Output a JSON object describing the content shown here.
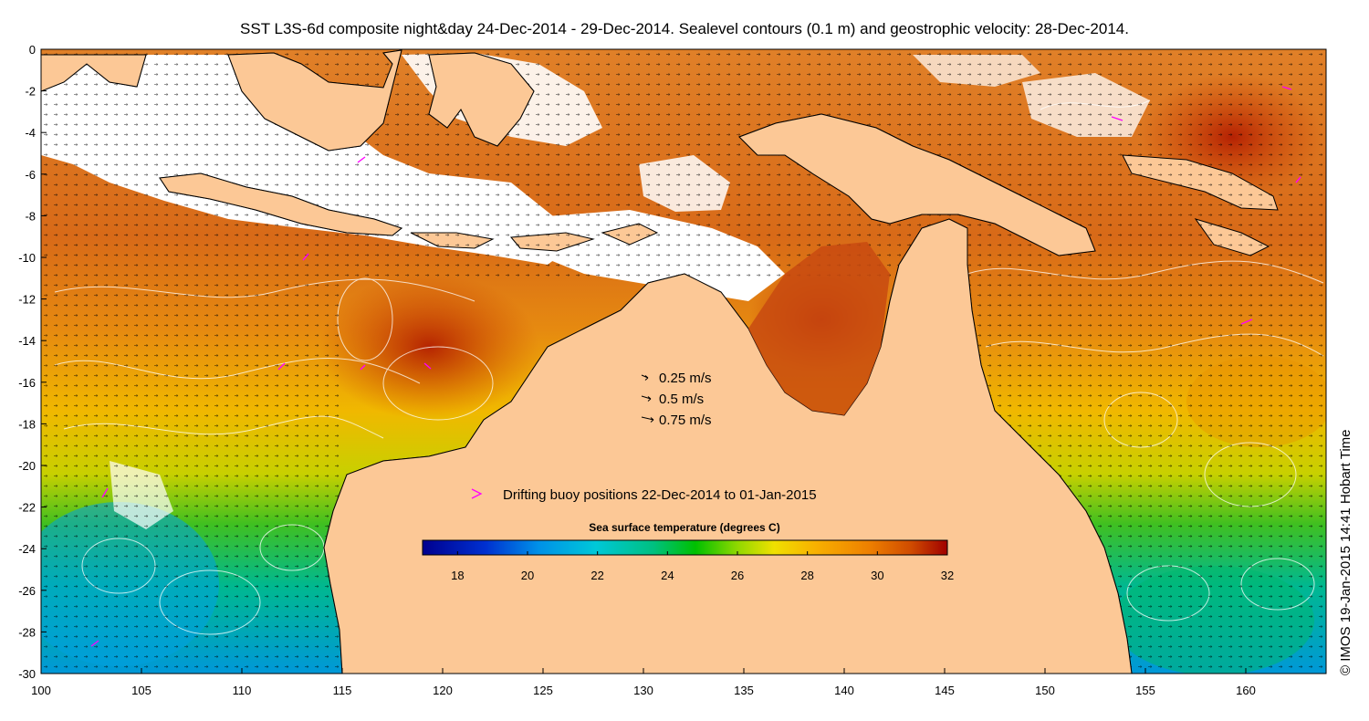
{
  "title": "SST L3S-6d composite night&day 24-Dec-2014 - 29-Dec-2014. Sealevel contours (0.1 m) and geostrophic velocity: 28-Dec-2014.",
  "credit": "© IMOS 19-Jan-2015 14:41 Hobart Time",
  "axes": {
    "x_ticks": [
      100,
      105,
      110,
      115,
      120,
      125,
      130,
      135,
      140,
      145,
      150,
      155,
      160
    ],
    "y_ticks": [
      0,
      -2,
      -4,
      -6,
      -8,
      -10,
      -12,
      -14,
      -16,
      -18,
      -20,
      -22,
      -24,
      -26,
      -28,
      -30
    ],
    "xlim": [
      100,
      164
    ],
    "ylim": [
      -30,
      0
    ]
  },
  "velocity_legend": [
    {
      "label": "0.25 m/s",
      "speed": 0.25
    },
    {
      "label": "0.5 m/s",
      "speed": 0.5
    },
    {
      "label": "0.75 m/s",
      "speed": 0.75
    }
  ],
  "buoy_legend": {
    "label": "Drifting buoy positions 22-Dec-2014 to 01-Jan-2015",
    "color": "#ff00ff"
  },
  "colorbar": {
    "title": "Sea surface temperature (degrees C)",
    "ticks": [
      18,
      20,
      22,
      24,
      26,
      28,
      30,
      32
    ],
    "range": [
      17,
      32
    ]
  },
  "colors": {
    "land": "#fcc896",
    "missing": "#ffffff"
  }
}
